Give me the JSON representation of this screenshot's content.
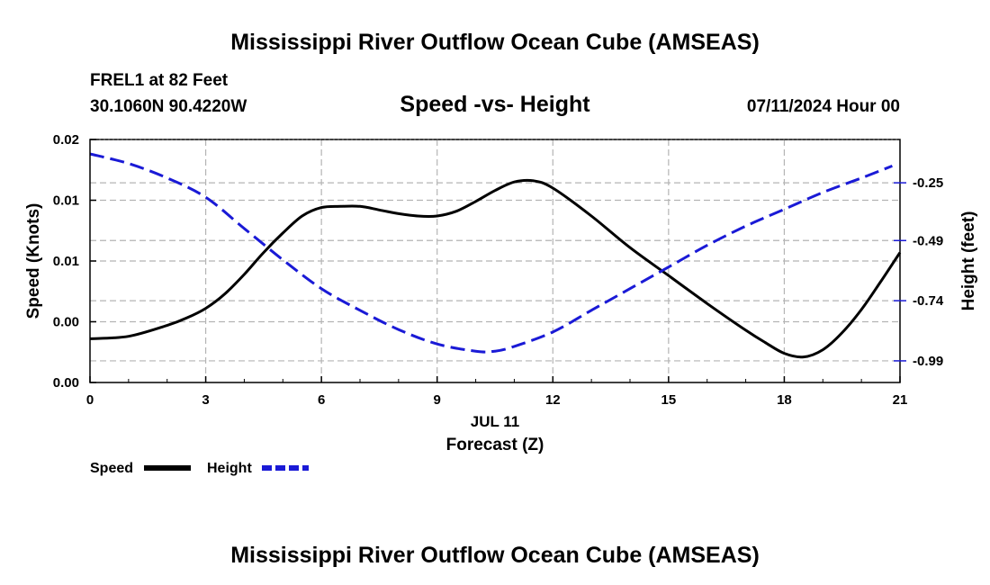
{
  "header": {
    "title": "Mississippi River Outflow Ocean Cube (AMSEAS)",
    "station_line1": "FREL1 at 82 Feet",
    "station_line2": "30.1060N  90.4220W",
    "plot_title": "Speed -vs- Height",
    "date": "07/11/2024 Hour 00"
  },
  "footer": {
    "title": "Mississippi River Outflow Ocean Cube (AMSEAS)"
  },
  "legend": {
    "speed_label": "Speed",
    "height_label": "Height"
  },
  "colors": {
    "speed": "#000000",
    "height": "#1a1ad6",
    "grid": "#b4b4b4"
  },
  "chart_data": {
    "type": "line",
    "title": "Speed -vs- Height",
    "xlabel": "Forecast (Z)",
    "xsublabel": "JUL 11",
    "ylabel": "Speed (Knots)",
    "y2label": "Height (feet)",
    "xlim": [
      0,
      21
    ],
    "ylim": [
      0,
      0.02
    ],
    "y2lim": [
      -1.08,
      -0.07
    ],
    "x_ticks": [
      0,
      3,
      6,
      9,
      12,
      15,
      18,
      21
    ],
    "x_tick_labels": [
      "0",
      "3",
      "6",
      "9",
      "12",
      "15",
      "18",
      "21"
    ],
    "y_ticks": [
      0,
      0.005,
      0.01,
      0.015,
      0.02
    ],
    "y_tick_labels": [
      "0.00",
      "0.00",
      "0.01",
      "0.01",
      "0.02"
    ],
    "y2_ticks": [
      -0.25,
      -0.49,
      -0.74,
      -0.99
    ],
    "y2_tick_labels": [
      "-0.25",
      "-0.49",
      "-0.74",
      "-0.99"
    ],
    "grid": true,
    "series": [
      {
        "name": "Speed",
        "axis": "left",
        "style": "solid",
        "x": [
          0,
          1,
          2,
          2.5,
          3,
          3.5,
          4,
          4.5,
          5,
          5.5,
          6,
          6.5,
          7,
          7.5,
          8,
          8.5,
          9,
          9.5,
          10,
          10.5,
          11,
          11.5,
          12,
          13,
          14,
          15,
          16,
          17,
          17.5,
          18,
          18.5,
          19,
          19.5,
          20,
          20.5,
          21
        ],
        "values": [
          0.0036,
          0.0038,
          0.0047,
          0.0053,
          0.0061,
          0.0073,
          0.0089,
          0.0107,
          0.0123,
          0.0137,
          0.0144,
          0.0145,
          0.0145,
          0.0142,
          0.0139,
          0.0137,
          0.0137,
          0.0141,
          0.0149,
          0.0158,
          0.0165,
          0.0166,
          0.016,
          0.0137,
          0.0111,
          0.0088,
          0.0065,
          0.0043,
          0.0033,
          0.0024,
          0.0021,
          0.0027,
          0.0041,
          0.006,
          0.0083,
          0.0107
        ]
      },
      {
        "name": "Height",
        "axis": "right",
        "style": "dashed",
        "x": [
          0,
          1,
          2,
          3,
          4,
          5,
          6,
          7,
          8,
          9,
          10,
          10.5,
          11,
          12,
          13,
          14,
          15,
          16,
          17,
          18,
          19,
          20,
          20.8
        ],
        "values": [
          -0.13,
          -0.17,
          -0.23,
          -0.31,
          -0.44,
          -0.57,
          -0.69,
          -0.78,
          -0.86,
          -0.92,
          -0.95,
          -0.95,
          -0.93,
          -0.87,
          -0.78,
          -0.69,
          -0.6,
          -0.51,
          -0.43,
          -0.36,
          -0.29,
          -0.23,
          -0.18
        ]
      }
    ]
  }
}
